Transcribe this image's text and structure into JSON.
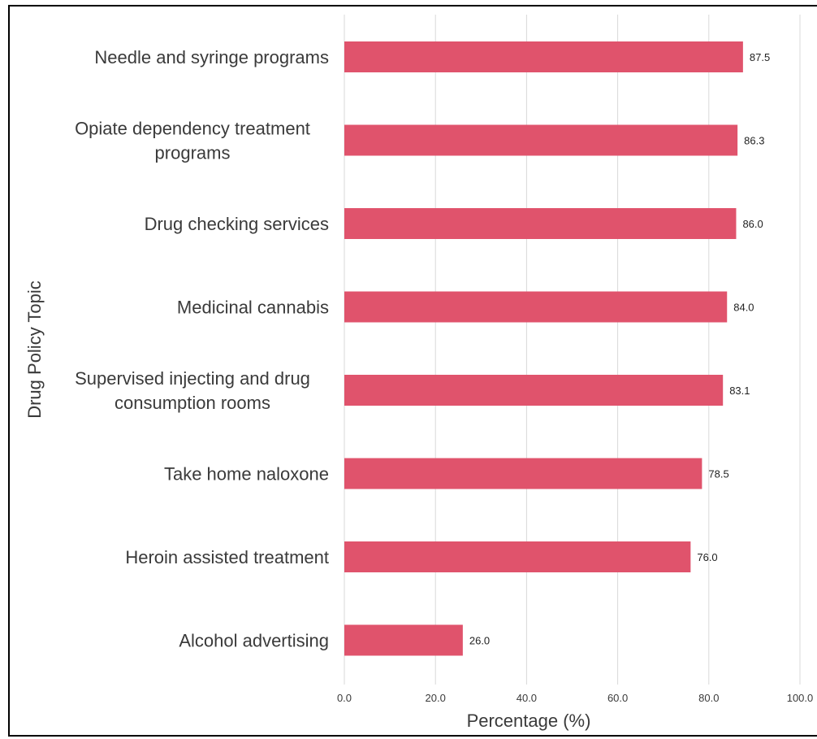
{
  "chart_data": {
    "type": "bar",
    "orientation": "horizontal",
    "categories": [
      [
        "Needle and syringe programs"
      ],
      [
        "Opiate dependency treatment",
        "programs"
      ],
      [
        "Drug checking services"
      ],
      [
        "Medicinal cannabis"
      ],
      [
        "Supervised injecting and drug",
        "consumption rooms"
      ],
      [
        "Take home naloxone"
      ],
      [
        "Heroin assisted treatment"
      ],
      [
        "Alcohol advertising"
      ]
    ],
    "values": [
      87.5,
      86.3,
      86.0,
      84.0,
      83.1,
      78.5,
      76.0,
      26.0
    ],
    "value_labels": [
      "87.5",
      "86.3",
      "86.0",
      "84.0",
      "83.1",
      "78.5",
      "76.0",
      "26.0"
    ],
    "xlabel": "Percentage (%)",
    "ylabel": "Drug Policy Topic",
    "xlim": [
      0,
      100
    ],
    "xticks": [
      "0.0",
      "20.0",
      "40.0",
      "60.0",
      "80.0",
      "100.0"
    ],
    "grid": true,
    "legend": "none",
    "bar_color": "#e0536c",
    "grid_color": "#d9d9d9"
  }
}
